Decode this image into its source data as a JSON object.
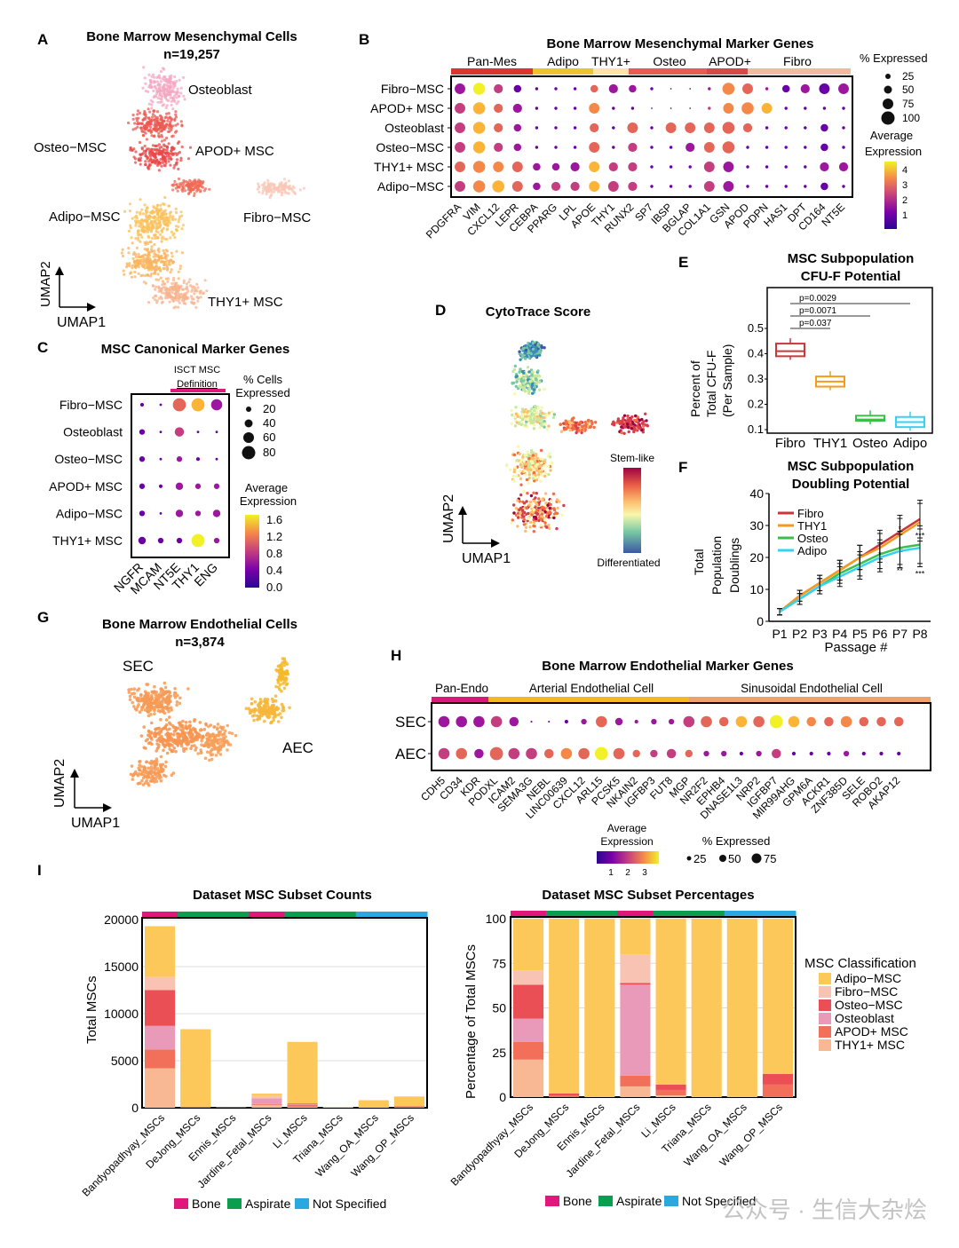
{
  "panels": {
    "A": {
      "letter": "A",
      "title": "Bone Marrow Mesenchymal Cells",
      "subtitle": "n=19,257",
      "clusters": [
        "Osteoblast",
        "Osteo−MSC",
        "APOD+ MSC",
        "Adipo−MSC",
        "Fibro−MSC",
        "THY1+ MSC"
      ],
      "xlabel": "UMAP1",
      "ylabel": "UMAP2"
    },
    "B": {
      "letter": "B",
      "title": "Bone Marrow Mesenchymal Marker Genes",
      "groups": [
        "Pan-Mes",
        "Adipo",
        "THY1+",
        "Osteo",
        "APOD+",
        "Fibro"
      ],
      "rows": [
        "Fibro−MSC",
        "APOD+ MSC",
        "Osteoblast",
        "Osteo−MSC",
        "THY1+ MSC",
        "Adipo−MSC"
      ],
      "genes": [
        "PDGFRA",
        "VIM",
        "CXCL12",
        "LEPR",
        "CEBPA",
        "PPARG",
        "LPL",
        "APOE",
        "THY1",
        "RUNX2",
        "SP7",
        "IBSP",
        "BGLAP",
        "COL1A1",
        "GSN",
        "APOD",
        "PDPN",
        "HAS1",
        "DPT",
        "CD164",
        "NT5E"
      ],
      "size_legend_title": "% Expressed",
      "size_levels": [
        "25",
        "50",
        "75",
        "100"
      ],
      "color_legend_title": "Average\nExpression",
      "color_levels": [
        "4",
        "3",
        "2",
        "1"
      ]
    },
    "C": {
      "letter": "C",
      "title": "MSC Canonical Marker Genes",
      "bracket_line1": "ISCT MSC",
      "bracket_line2": "Definition",
      "rows": [
        "Fibro−MSC",
        "Osteoblast",
        "Osteo−MSC",
        "APOD+ MSC",
        "Adipo−MSC",
        "THY1+ MSC"
      ],
      "genes": [
        "NGFR",
        "MCAM",
        "NT5E",
        "THY1",
        "ENG"
      ],
      "size_legend_title": "% Cells\nExpressed",
      "size_levels": [
        "20",
        "40",
        "60",
        "80"
      ],
      "color_legend_title": "Average\nExpression",
      "color_levels": [
        "1.6",
        "1.2",
        "0.8",
        "0.4",
        "0.0"
      ]
    },
    "D": {
      "letter": "D",
      "title": "CytoTrace Score",
      "legend_top": "Stem-like",
      "legend_bottom": "Differentiated",
      "xlabel": "UMAP1",
      "ylabel": "UMAP2"
    },
    "E": {
      "letter": "E",
      "title": "MSC Subpopulation",
      "subtitle": "CFU-F Potential",
      "ylabel": "Percent of\nTotal CFU-F\n(Per Sample)",
      "pvalues": [
        "p=0.0029",
        "p=0.0071",
        "p=0.037"
      ],
      "categories": [
        "Fibro",
        "THY1",
        "Osteo",
        "Adipo"
      ],
      "yticks": [
        "0.5",
        "0.4",
        "0.3",
        "0.2",
        "0.1"
      ]
    },
    "F": {
      "letter": "F",
      "title": "MSC Subpopulation",
      "subtitle": "Doubling Potential",
      "xlabel": "Passage #",
      "ylabel": "Total\nPopulation\nDoublings",
      "legend": [
        "Fibro",
        "THY1",
        "Osteo",
        "Adipo"
      ],
      "xticks": [
        "P1",
        "P2",
        "P3",
        "P4",
        "P5",
        "P6",
        "P7",
        "P8"
      ],
      "yticks": [
        "40",
        "30",
        "20",
        "10",
        "0"
      ],
      "sig_marks": [
        "*",
        "**",
        "***",
        "*",
        "***"
      ]
    },
    "G": {
      "letter": "G",
      "title": "Bone Marrow Endothelial Cells",
      "subtitle": "n=3,874",
      "clusters": [
        "SEC",
        "AEC"
      ],
      "xlabel": "UMAP1",
      "ylabel": "UMAP2"
    },
    "H": {
      "letter": "H",
      "title": "Bone Marrow Endothelial Marker Genes",
      "groups": [
        "Pan-Endo",
        "Arterial Endothelial Cell",
        "Sinusoidal Endothelial Cell"
      ],
      "rows": [
        "SEC",
        "AEC"
      ],
      "genes": [
        "CDH5",
        "CD34",
        "KDR",
        "PODXL",
        "ICAM2",
        "SEMA3G",
        "NEBL",
        "LINC00639",
        "CXCL12",
        "ARL15",
        "PCSK5",
        "NKAIN2",
        "IGFBP3",
        "FUT8",
        "MGP",
        "NR2F2",
        "EPHB4",
        "DNASE1L3",
        "NRP2",
        "IGFBP7",
        "MIR99AHG",
        "GPM6A",
        "ACKR1",
        "ZNF385D",
        "SELE",
        "ROBO2",
        "AKAP12"
      ],
      "color_legend_title": "Average\nExpression",
      "color_levels": [
        "1",
        "2",
        "3"
      ],
      "size_legend_title": "% Expressed",
      "size_levels": [
        "25",
        "50",
        "75"
      ]
    },
    "I": {
      "letter": "I",
      "left_title": "Dataset MSC Subset Counts",
      "left_ylabel": "Total MSCs",
      "left_yticks": [
        "20000",
        "15000",
        "10000",
        "5000",
        "0"
      ],
      "right_title": "Dataset MSC Subset Percentages",
      "right_ylabel": "Percentage of Total MSCs",
      "right_yticks": [
        "100",
        "75",
        "50",
        "25",
        "0"
      ],
      "datasets": [
        "Bandyopadhyay_MSCs",
        "DeJong_MSCs",
        "Ennis_MSCs",
        "Jardine_Fetal_MSCs",
        "Li_MSCs",
        "Triana_MSCs",
        "Wang_OA_MSCs",
        "Wang_OP_MSCs"
      ],
      "source_legend": [
        "Bone",
        "Aspirate",
        "Not Specified"
      ],
      "class_legend_title": "MSC Classification",
      "classes": [
        "Adipo−MSC",
        "Fibro−MSC",
        "Osteo−MSC",
        "Osteoblast",
        "APOD+ MSC",
        "THY1+ MSC"
      ]
    }
  },
  "colors": {
    "adipo": "#fcc85a",
    "fibro": "#f9c3b3",
    "osteo": "#ea4f56",
    "osteoblast": "#e89ab8",
    "apod": "#f2705a",
    "thy1": "#f8b894",
    "bone": "#e0177d",
    "aspirate": "#0b9e4e",
    "notspec": "#2aa8e0",
    "box_fibro": "#c8373b",
    "box_thy1": "#f39b1f",
    "box_osteo": "#3bbf4a",
    "box_adipo": "#35d3f0"
  },
  "watermark": "公众号 · 生信大杂烩",
  "chart_data": [
    {
      "type": "scatter",
      "name": "A UMAP",
      "note_only": false,
      "clusters": [
        "Osteoblast",
        "Osteo−MSC",
        "APOD+ MSC",
        "Adipo−MSC",
        "Fibro−MSC",
        "THY1+ MSC"
      ]
    },
    {
      "type": "box",
      "categories": [
        "Fibro",
        "THY1",
        "Osteo",
        "Adipo"
      ],
      "medians": [
        0.41,
        0.29,
        0.14,
        0.13
      ],
      "q1": [
        0.39,
        0.27,
        0.135,
        0.11
      ],
      "q3": [
        0.44,
        0.31,
        0.155,
        0.15
      ],
      "ylim": [
        0.1,
        0.5
      ]
    },
    {
      "type": "line",
      "x": [
        "P1",
        "P2",
        "P3",
        "P4",
        "P5",
        "P6",
        "P7",
        "P8"
      ],
      "series": [
        {
          "name": "Fibro",
          "values": [
            3,
            8,
            12,
            16,
            20,
            24,
            28,
            32
          ]
        },
        {
          "name": "THY1",
          "values": [
            3,
            8,
            12,
            16,
            20,
            23,
            27,
            31
          ]
        },
        {
          "name": "Osteo",
          "values": [
            3,
            7,
            11,
            15,
            18,
            21,
            23,
            24
          ]
        },
        {
          "name": "Adipo",
          "values": [
            3,
            7,
            11,
            14,
            17,
            20,
            22,
            23
          ]
        }
      ],
      "ylim": [
        0,
        40
      ]
    },
    {
      "type": "bar",
      "stacked": true,
      "categories": [
        "Bandyopadhyay_MSCs",
        "DeJong_MSCs",
        "Ennis_MSCs",
        "Jardine_Fetal_MSCs",
        "Li_MSCs",
        "Triana_MSCs",
        "Wang_OA_MSCs",
        "Wang_OP_MSCs"
      ],
      "series": [
        {
          "name": "THY1+ MSC",
          "values": [
            4200,
            0,
            0,
            300,
            100,
            0,
            0,
            0
          ]
        },
        {
          "name": "APOD+ MSC",
          "values": [
            2000,
            50,
            0,
            100,
            200,
            0,
            0,
            100
          ]
        },
        {
          "name": "Osteoblast",
          "values": [
            2500,
            0,
            0,
            600,
            50,
            0,
            0,
            0
          ]
        },
        {
          "name": "Osteo−MSC",
          "values": [
            3800,
            50,
            0,
            0,
            100,
            0,
            0,
            50
          ]
        },
        {
          "name": "Fibro−MSC",
          "values": [
            1400,
            0,
            0,
            250,
            0,
            0,
            0,
            0
          ]
        },
        {
          "name": "Adipo−MSC",
          "values": [
            5400,
            8250,
            50,
            250,
            6550,
            100,
            800,
            1050
          ]
        }
      ],
      "ylim": [
        0,
        20000
      ]
    },
    {
      "type": "bar",
      "stacked": true,
      "percent": true,
      "categories": [
        "Bandyopadhyay_MSCs",
        "DeJong_MSCs",
        "Ennis_MSCs",
        "Jardine_Fetal_MSCs",
        "Li_MSCs",
        "Triana_MSCs",
        "Wang_OA_MSCs",
        "Wang_OP_MSCs"
      ],
      "series": [
        {
          "name": "THY1+ MSC",
          "values": [
            21,
            0,
            0,
            6,
            1,
            0,
            0,
            0
          ]
        },
        {
          "name": "APOD+ MSC",
          "values": [
            10,
            1,
            0,
            6,
            3,
            0,
            0,
            7
          ]
        },
        {
          "name": "Osteoblast",
          "values": [
            13,
            0,
            0,
            51,
            0,
            0,
            0,
            0
          ]
        },
        {
          "name": "Osteo−MSC",
          "values": [
            19,
            1,
            0,
            1,
            3,
            0,
            0,
            6
          ]
        },
        {
          "name": "Fibro−MSC",
          "values": [
            8,
            0,
            0,
            16,
            0,
            0,
            0,
            0
          ]
        },
        {
          "name": "Adipo−MSC",
          "values": [
            29,
            98,
            100,
            20,
            93,
            100,
            100,
            87
          ]
        }
      ],
      "ylim": [
        0,
        100
      ]
    }
  ]
}
